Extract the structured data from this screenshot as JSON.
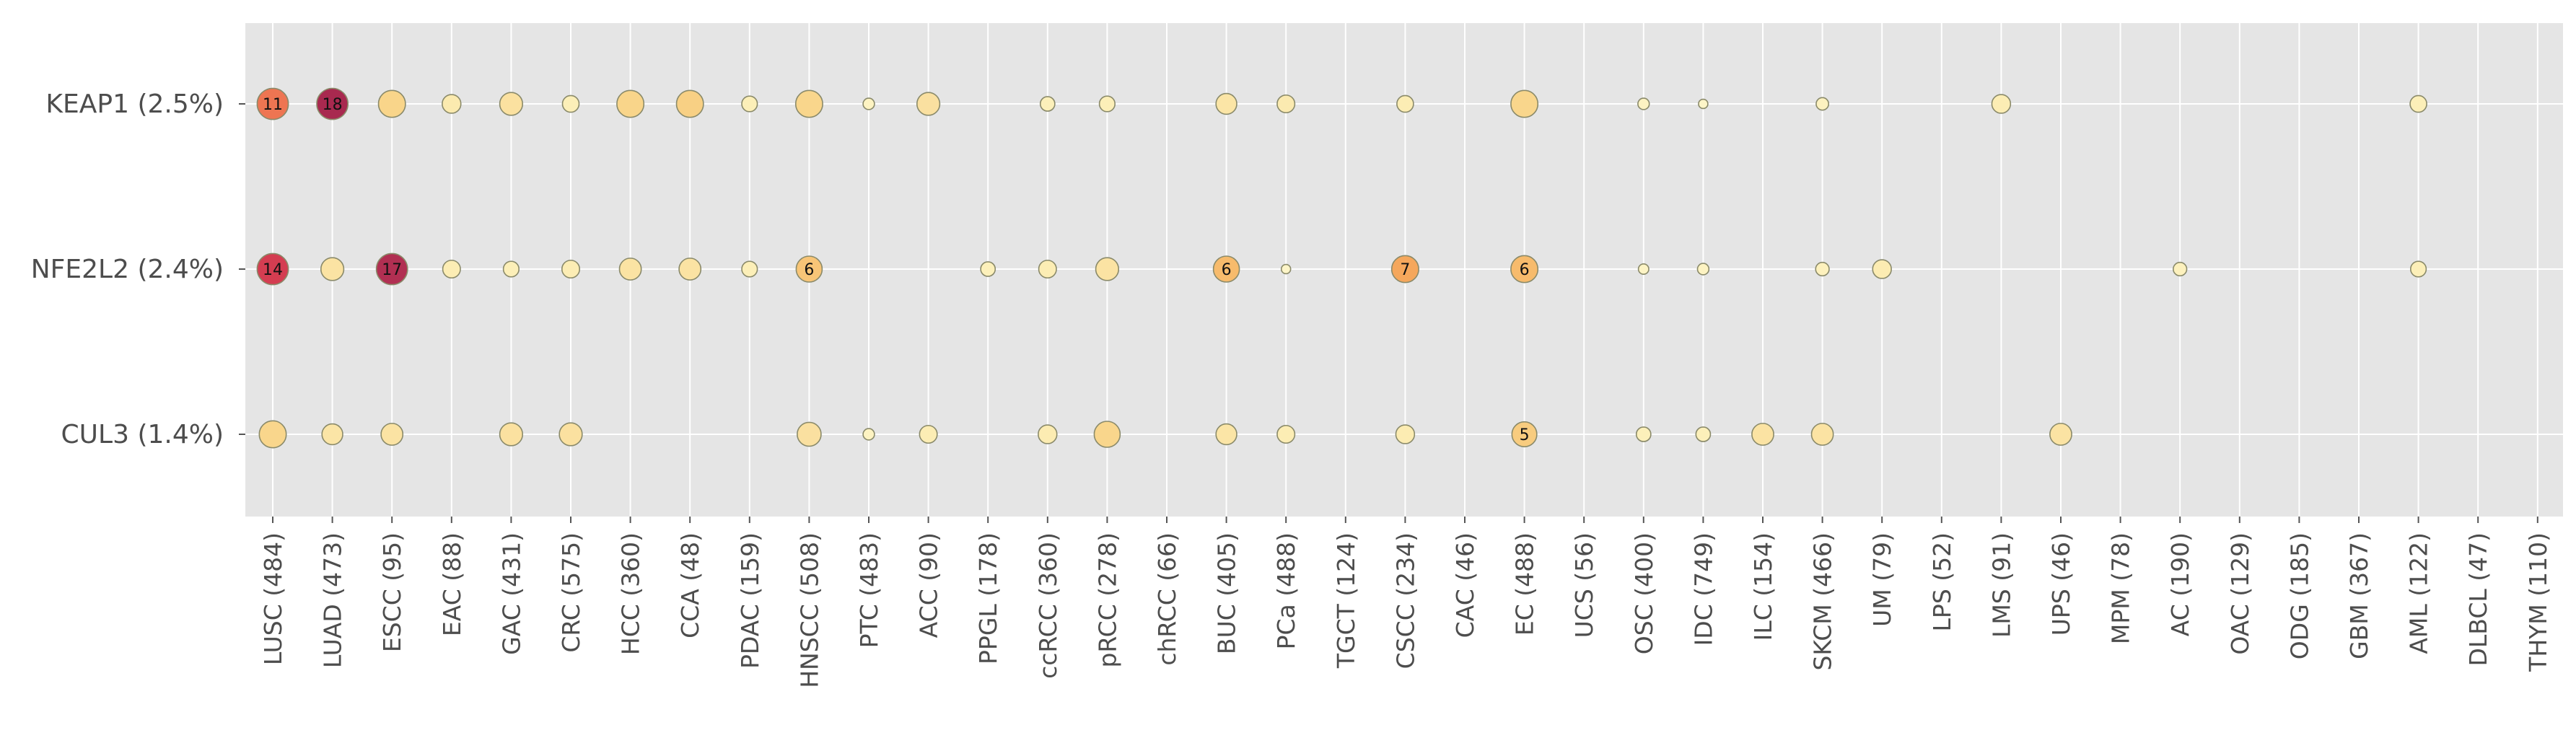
{
  "chart_data": {
    "type": "scatter",
    "title": "",
    "xlabel": "",
    "ylabel": "",
    "grid": true,
    "categories": [
      "LUSC (484)",
      "LUAD (473)",
      "ESCC (95)",
      "EAC (88)",
      "GAC (431)",
      "CRC (575)",
      "HCC (360)",
      "CCA (48)",
      "PDAC (159)",
      "HNSCC (508)",
      "PTC (483)",
      "ACC (90)",
      "PPGL (178)",
      "ccRCC (360)",
      "pRCC (278)",
      "chRCC (66)",
      "BUC (405)",
      "PCa (488)",
      "TGCT (124)",
      "CSCC (234)",
      "CAC (46)",
      "EC (488)",
      "UCS (56)",
      "OSC (400)",
      "IDC (749)",
      "ILC (154)",
      "SKCM (466)",
      "UM (79)",
      "LPS (52)",
      "LMS (91)",
      "UPS (46)",
      "MPM (78)",
      "AC (190)",
      "OAC (129)",
      "ODG (185)",
      "GBM (367)",
      "AML (122)",
      "DLBCL (47)",
      "THYM (110)"
    ],
    "rows": [
      "KEAP1 (2.5%)",
      "NFE2L2 (2.4%)",
      "CUL3 (1.4%)"
    ],
    "points": [
      {
        "row": "KEAP1 (2.5%)",
        "col": "LUSC (484)",
        "count": 11,
        "size": 3.0,
        "color": "#ee7552",
        "label": "11"
      },
      {
        "row": "KEAP1 (2.5%)",
        "col": "LUAD (473)",
        "count": 18,
        "size": 3.0,
        "color": "#a8294f",
        "label": "18"
      },
      {
        "row": "KEAP1 (2.5%)",
        "col": "ESCC (95)",
        "count": 3,
        "size": 2.6,
        "color": "#f9d58a",
        "label": ""
      },
      {
        "row": "KEAP1 (2.5%)",
        "col": "EAC (88)",
        "count": 1,
        "size": 1.8,
        "color": "#fbeaaf",
        "label": ""
      },
      {
        "row": "KEAP1 (2.5%)",
        "col": "GAC (431)",
        "count": 2,
        "size": 2.2,
        "color": "#fbe1a0",
        "label": ""
      },
      {
        "row": "KEAP1 (2.5%)",
        "col": "CRC (575)",
        "count": 1,
        "size": 1.6,
        "color": "#fcefb8",
        "label": ""
      },
      {
        "row": "KEAP1 (2.5%)",
        "col": "HCC (360)",
        "count": 3,
        "size": 2.6,
        "color": "#f9d58a",
        "label": ""
      },
      {
        "row": "KEAP1 (2.5%)",
        "col": "CCA (48)",
        "count": 3,
        "size": 2.6,
        "color": "#f8d084",
        "label": ""
      },
      {
        "row": "KEAP1 (2.5%)",
        "col": "PDAC (159)",
        "count": 1,
        "size": 1.5,
        "color": "#fcefb8",
        "label": ""
      },
      {
        "row": "KEAP1 (2.5%)",
        "col": "HNSCC (508)",
        "count": 3,
        "size": 2.6,
        "color": "#f9d68c",
        "label": ""
      },
      {
        "row": "KEAP1 (2.5%)",
        "col": "PTC (483)",
        "count": 1,
        "size": 1.1,
        "color": "#fdf3c2",
        "label": ""
      },
      {
        "row": "KEAP1 (2.5%)",
        "col": "ACC (90)",
        "count": 2,
        "size": 2.2,
        "color": "#fae0a0",
        "label": ""
      },
      {
        "row": "KEAP1 (2.5%)",
        "col": "ccRCC (360)",
        "count": 1,
        "size": 1.4,
        "color": "#fcf0ba",
        "label": ""
      },
      {
        "row": "KEAP1 (2.5%)",
        "col": "pRCC (278)",
        "count": 1,
        "size": 1.5,
        "color": "#fcefb8",
        "label": ""
      },
      {
        "row": "KEAP1 (2.5%)",
        "col": "BUC (405)",
        "count": 2,
        "size": 2.0,
        "color": "#fbe5a6",
        "label": ""
      },
      {
        "row": "KEAP1 (2.5%)",
        "col": "PCa (488)",
        "count": 1,
        "size": 1.7,
        "color": "#fbeab0",
        "label": ""
      },
      {
        "row": "KEAP1 (2.5%)",
        "col": "CSCC (234)",
        "count": 1,
        "size": 1.6,
        "color": "#fcedb4",
        "label": ""
      },
      {
        "row": "KEAP1 (2.5%)",
        "col": "EC (488)",
        "count": 3,
        "size": 2.6,
        "color": "#f9d68c",
        "label": ""
      },
      {
        "row": "KEAP1 (2.5%)",
        "col": "OSC (400)",
        "count": 1,
        "size": 1.1,
        "color": "#fdf3c2",
        "label": ""
      },
      {
        "row": "KEAP1 (2.5%)",
        "col": "IDC (749)",
        "count": 1,
        "size": 0.9,
        "color": "#fdf5c8",
        "label": ""
      },
      {
        "row": "KEAP1 (2.5%)",
        "col": "SKCM (466)",
        "count": 1,
        "size": 1.2,
        "color": "#fdf2c0",
        "label": ""
      },
      {
        "row": "KEAP1 (2.5%)",
        "col": "LMS (91)",
        "count": 1,
        "size": 1.8,
        "color": "#fcedb4",
        "label": ""
      },
      {
        "row": "KEAP1 (2.5%)",
        "col": "AML (122)",
        "count": 1,
        "size": 1.6,
        "color": "#fcefb8",
        "label": ""
      },
      {
        "row": "NFE2L2 (2.4%)",
        "col": "LUSC (484)",
        "count": 14,
        "size": 3.0,
        "color": "#d43d51",
        "label": "14"
      },
      {
        "row": "NFE2L2 (2.4%)",
        "col": "LUAD (473)",
        "count": 2,
        "size": 2.2,
        "color": "#fbe3a3",
        "label": ""
      },
      {
        "row": "NFE2L2 (2.4%)",
        "col": "ESCC (95)",
        "count": 17,
        "size": 3.0,
        "color": "#b12f52",
        "label": "17"
      },
      {
        "row": "NFE2L2 (2.4%)",
        "col": "EAC (88)",
        "count": 1,
        "size": 1.7,
        "color": "#fcedb4",
        "label": ""
      },
      {
        "row": "NFE2L2 (2.4%)",
        "col": "GAC (431)",
        "count": 1,
        "size": 1.5,
        "color": "#fcefb8",
        "label": ""
      },
      {
        "row": "NFE2L2 (2.4%)",
        "col": "CRC (575)",
        "count": 1,
        "size": 1.7,
        "color": "#fcedb4",
        "label": ""
      },
      {
        "row": "NFE2L2 (2.4%)",
        "col": "HCC (360)",
        "count": 2,
        "size": 2.1,
        "color": "#fbe3a3",
        "label": ""
      },
      {
        "row": "NFE2L2 (2.4%)",
        "col": "CCA (48)",
        "count": 2,
        "size": 2.1,
        "color": "#fbe3a3",
        "label": ""
      },
      {
        "row": "NFE2L2 (2.4%)",
        "col": "PDAC (159)",
        "count": 1,
        "size": 1.5,
        "color": "#fcefb8",
        "label": ""
      },
      {
        "row": "NFE2L2 (2.4%)",
        "col": "HNSCC (508)",
        "count": 6,
        "size": 2.5,
        "color": "#f8c577",
        "label": "6"
      },
      {
        "row": "NFE2L2 (2.4%)",
        "col": "PPGL (178)",
        "count": 1,
        "size": 1.4,
        "color": "#fcf0ba",
        "label": ""
      },
      {
        "row": "NFE2L2 (2.4%)",
        "col": "ccRCC (360)",
        "count": 1,
        "size": 1.7,
        "color": "#fcedb4",
        "label": ""
      },
      {
        "row": "NFE2L2 (2.4%)",
        "col": "pRCC (278)",
        "count": 2,
        "size": 2.2,
        "color": "#fbe3a3",
        "label": ""
      },
      {
        "row": "NFE2L2 (2.4%)",
        "col": "BUC (405)",
        "count": 6,
        "size": 2.5,
        "color": "#f7bb6c",
        "label": "6"
      },
      {
        "row": "NFE2L2 (2.4%)",
        "col": "PCa (488)",
        "count": 1,
        "size": 0.9,
        "color": "#fdf5c8",
        "label": ""
      },
      {
        "row": "NFE2L2 (2.4%)",
        "col": "CSCC (234)",
        "count": 7,
        "size": 2.6,
        "color": "#f5a75c",
        "label": "7"
      },
      {
        "row": "NFE2L2 (2.4%)",
        "col": "EC (488)",
        "count": 6,
        "size": 2.6,
        "color": "#f7bb6c",
        "label": "6"
      },
      {
        "row": "NFE2L2 (2.4%)",
        "col": "OSC (400)",
        "count": 1,
        "size": 1.0,
        "color": "#fdf4c5",
        "label": ""
      },
      {
        "row": "NFE2L2 (2.4%)",
        "col": "IDC (749)",
        "count": 1,
        "size": 1.1,
        "color": "#fdf3c2",
        "label": ""
      },
      {
        "row": "NFE2L2 (2.4%)",
        "col": "SKCM (466)",
        "count": 1,
        "size": 1.3,
        "color": "#fdf1bd",
        "label": ""
      },
      {
        "row": "NFE2L2 (2.4%)",
        "col": "UM (79)",
        "count": 1,
        "size": 1.8,
        "color": "#fcecb2",
        "label": ""
      },
      {
        "row": "NFE2L2 (2.4%)",
        "col": "AC (190)",
        "count": 1,
        "size": 1.3,
        "color": "#fdf1bd",
        "label": ""
      },
      {
        "row": "NFE2L2 (2.4%)",
        "col": "AML (122)",
        "count": 1,
        "size": 1.5,
        "color": "#fcefb8",
        "label": ""
      },
      {
        "row": "CUL3 (1.4%)",
        "col": "LUSC (484)",
        "count": 3,
        "size": 2.6,
        "color": "#f9d68c",
        "label": ""
      },
      {
        "row": "CUL3 (1.4%)",
        "col": "LUAD (473)",
        "count": 2,
        "size": 2.0,
        "color": "#fbe5a6",
        "label": ""
      },
      {
        "row": "CUL3 (1.4%)",
        "col": "ESCC (95)",
        "count": 2,
        "size": 2.1,
        "color": "#fbe3a3",
        "label": ""
      },
      {
        "row": "CUL3 (1.4%)",
        "col": "GAC (431)",
        "count": 2,
        "size": 2.2,
        "color": "#fbe1a0",
        "label": ""
      },
      {
        "row": "CUL3 (1.4%)",
        "col": "CRC (575)",
        "count": 2,
        "size": 2.2,
        "color": "#fbe1a0",
        "label": ""
      },
      {
        "row": "CUL3 (1.4%)",
        "col": "HNSCC (508)",
        "count": 2,
        "size": 2.3,
        "color": "#fae0a0",
        "label": ""
      },
      {
        "row": "CUL3 (1.4%)",
        "col": "PTC (483)",
        "count": 1,
        "size": 1.1,
        "color": "#fdf3c2",
        "label": ""
      },
      {
        "row": "CUL3 (1.4%)",
        "col": "ACC (90)",
        "count": 1,
        "size": 1.7,
        "color": "#fcedb4",
        "label": ""
      },
      {
        "row": "CUL3 (1.4%)",
        "col": "ccRCC (360)",
        "count": 1,
        "size": 1.8,
        "color": "#fcecb2",
        "label": ""
      },
      {
        "row": "CUL3 (1.4%)",
        "col": "pRCC (278)",
        "count": 3,
        "size": 2.5,
        "color": "#f9d68c",
        "label": ""
      },
      {
        "row": "CUL3 (1.4%)",
        "col": "BUC (405)",
        "count": 2,
        "size": 2.0,
        "color": "#fbe5a6",
        "label": ""
      },
      {
        "row": "CUL3 (1.4%)",
        "col": "PCa (488)",
        "count": 1,
        "size": 1.7,
        "color": "#fcedb4",
        "label": ""
      },
      {
        "row": "CUL3 (1.4%)",
        "col": "CSCC (234)",
        "count": 1,
        "size": 1.8,
        "color": "#fcecb2",
        "label": ""
      },
      {
        "row": "CUL3 (1.4%)",
        "col": "EC (488)",
        "count": 5,
        "size": 2.4,
        "color": "#f8cc7f",
        "label": "5"
      },
      {
        "row": "CUL3 (1.4%)",
        "col": "OSC (400)",
        "count": 1,
        "size": 1.4,
        "color": "#fcf0ba",
        "label": ""
      },
      {
        "row": "CUL3 (1.4%)",
        "col": "IDC (749)",
        "count": 1,
        "size": 1.4,
        "color": "#fcf0ba",
        "label": ""
      },
      {
        "row": "CUL3 (1.4%)",
        "col": "ILC (154)",
        "count": 2,
        "size": 2.1,
        "color": "#fbe3a3",
        "label": ""
      },
      {
        "row": "CUL3 (1.4%)",
        "col": "SKCM (466)",
        "count": 2,
        "size": 2.1,
        "color": "#fbe3a3",
        "label": ""
      },
      {
        "row": "CUL3 (1.4%)",
        "col": "UPS (46)",
        "count": 2,
        "size": 2.1,
        "color": "#fbe3a3",
        "label": ""
      }
    ],
    "colors": {
      "background": "#e5e5e5",
      "grid": "#ffffff",
      "marker_edge": "#8a8a6a",
      "tick_text": "#4d4d4d"
    },
    "legend": "none"
  }
}
